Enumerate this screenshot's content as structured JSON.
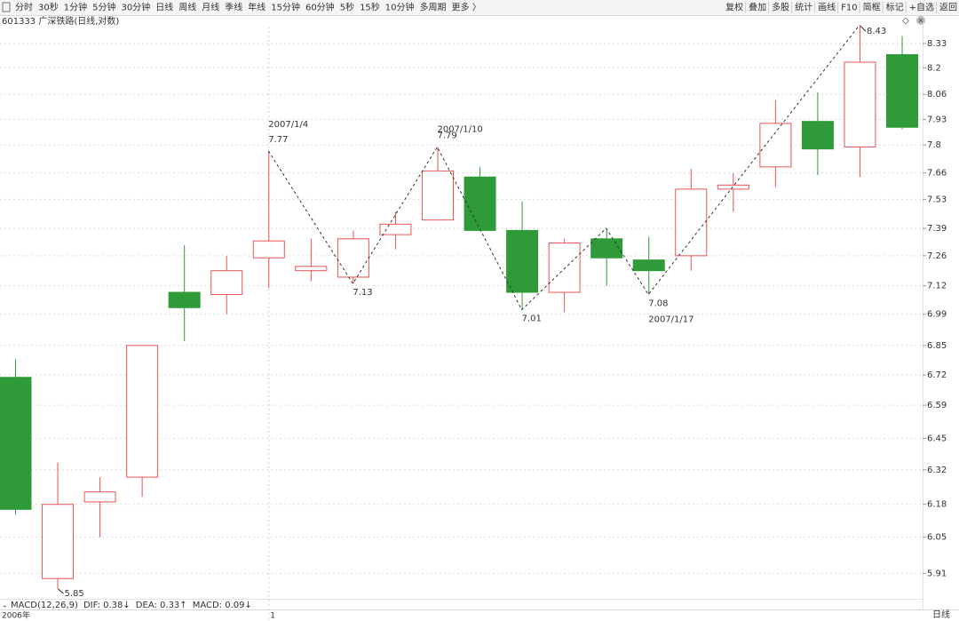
{
  "toolbar": {
    "left": [
      "分时",
      "30秒",
      "1分钟",
      "5分钟",
      "30分钟",
      "日线",
      "周线",
      "月线",
      "季线",
      "年线",
      "15分钟",
      "60分钟",
      "5秒",
      "15秒",
      "10分钟",
      "多周期",
      "更多 〉"
    ],
    "active": "日线",
    "right": [
      "复权",
      "叠加",
      "多股",
      "统计",
      "画线",
      "F10",
      "简框",
      "标记",
      "+自选",
      "返回"
    ]
  },
  "chart_data": {
    "type": "candlestick",
    "title": "601333 广深铁路(日线,对数)",
    "log_scale": true,
    "up_color": "#e85454",
    "down_color": "#2e9a38",
    "categories": [
      null,
      null,
      null,
      null,
      null,
      null,
      "1",
      null,
      null,
      null,
      null,
      null,
      null,
      null,
      null,
      null,
      null,
      null,
      null,
      null,
      null,
      null
    ],
    "x_period_label": "2006年",
    "open": [
      6.71,
      5.89,
      6.19,
      6.29,
      7.09,
      7.08,
      7.25,
      7.19,
      7.16,
      7.36,
      7.43,
      7.64,
      7.38,
      7.09,
      7.34,
      7.24,
      7.26,
      7.58,
      7.69,
      7.92,
      7.79,
      8.27
    ],
    "high": [
      6.79,
      6.35,
      6.29,
      6.85,
      7.31,
      7.26,
      7.77,
      7.34,
      7.38,
      7.47,
      7.79,
      7.69,
      7.52,
      7.34,
      7.39,
      7.35,
      7.68,
      7.66,
      8.03,
      8.07,
      8.43,
      8.37
    ],
    "low": [
      6.14,
      5.85,
      6.05,
      6.21,
      6.87,
      6.99,
      7.11,
      7.14,
      7.13,
      7.29,
      7.43,
      7.38,
      7.01,
      7.0,
      7.12,
      7.08,
      7.19,
      7.47,
      7.59,
      7.65,
      7.64,
      7.88
    ],
    "close": [
      6.16,
      6.18,
      6.23,
      6.85,
      7.02,
      7.19,
      7.33,
      7.21,
      7.34,
      7.41,
      7.67,
      7.38,
      7.09,
      7.32,
      7.25,
      7.19,
      7.58,
      7.6,
      7.91,
      7.78,
      8.23,
      7.89
    ],
    "ylim": [
      5.82,
      8.47
    ],
    "yticks": [
      5.91,
      6.05,
      6.18,
      6.32,
      6.45,
      6.59,
      6.72,
      6.85,
      6.99,
      7.12,
      7.26,
      7.39,
      7.53,
      7.66,
      7.8,
      7.93,
      8.06,
      8.2,
      8.33
    ],
    "grid": true,
    "zigzag": [
      7.77,
      7.13,
      7.79,
      7.01,
      7.39,
      7.08,
      8.43
    ],
    "annotations": [
      {
        "value": 7.77,
        "date": "2007/1/4"
      },
      {
        "value": 7.13
      },
      {
        "value": 7.79,
        "date": "2007/1/10"
      },
      {
        "value": 7.01
      },
      {
        "value": 7.08,
        "date": "2007/1/17"
      },
      {
        "value": 8.43
      },
      {
        "value": 5.85
      }
    ],
    "indicator": {
      "title": "MACD(12,26,9)",
      "items": [
        {
          "text": "DIF: 0.38",
          "arrow": "↓",
          "color": "#333333",
          "arrow_color": "#2e9a38"
        },
        {
          "text": "DEA: 0.33",
          "arrow": "↑",
          "color": "#1f6fd1",
          "arrow_color": "#e03030"
        },
        {
          "text": "MACD: 0.09",
          "arrow": "↓",
          "color": "#a030b0",
          "arrow_color": "#2e9a38"
        }
      ]
    },
    "period_tag": "日线"
  }
}
